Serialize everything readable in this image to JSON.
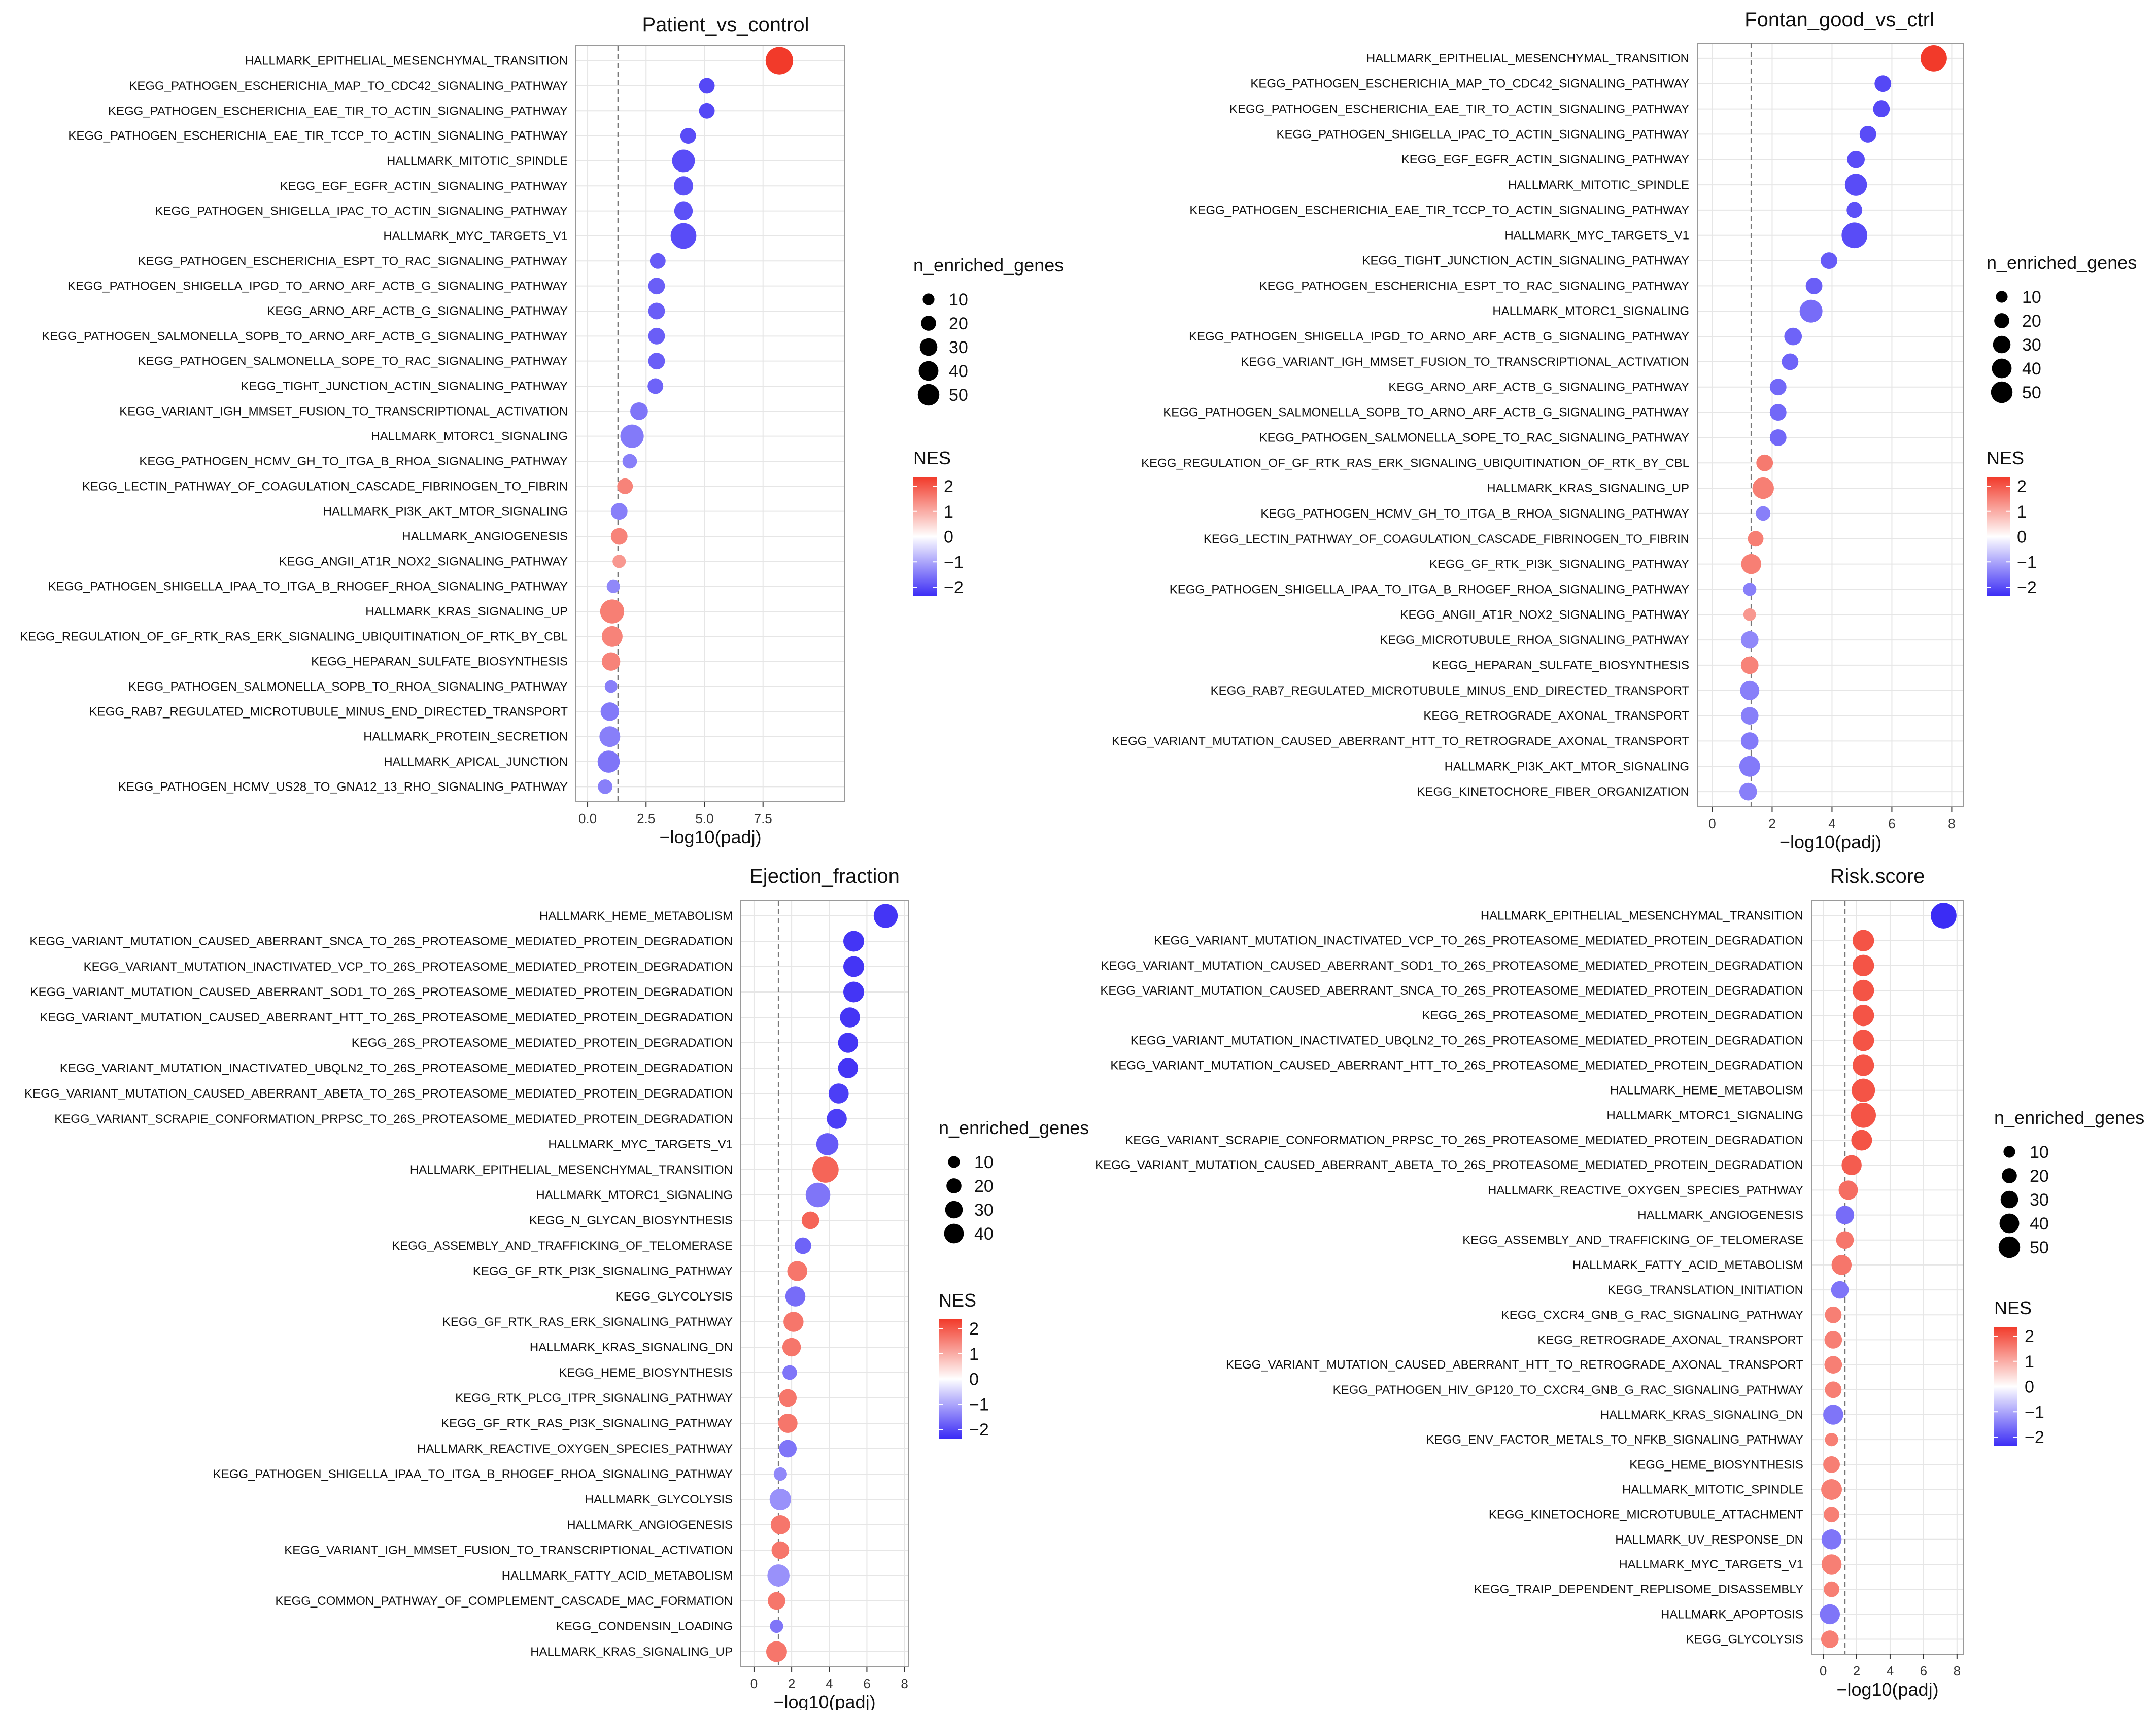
{
  "legend": {
    "size_title": "n_enriched_genes",
    "color_title": "NES",
    "color_ticks": [
      2,
      1,
      0,
      -1,
      -2
    ],
    "color_scale": {
      "low": "#3b2cf5",
      "mid": "#ffffff",
      "high": "#f23a2a"
    }
  },
  "chart_data": [
    {
      "type": "scatter",
      "title": "Patient_vs_control",
      "xlabel": "−log10(padj)",
      "xlim": [
        -0.5,
        11
      ],
      "xticks": [
        0.0,
        2.5,
        5.0,
        7.5
      ],
      "xtick_labels": [
        "0.0",
        "2.5",
        "5.0",
        "7.5"
      ],
      "threshold": 1.3,
      "size_legend": [
        10,
        20,
        30,
        40,
        50
      ],
      "pathways": [
        "HALLMARK_EPITHELIAL_MESENCHYMAL_TRANSITION",
        "KEGG_PATHOGEN_ESCHERICHIA_MAP_TO_CDC42_SIGNALING_PATHWAY",
        "KEGG_PATHOGEN_ESCHERICHIA_EAE_TIR_TO_ACTIN_SIGNALING_PATHWAY",
        "KEGG_PATHOGEN_ESCHERICHIA_EAE_TIR_TCCP_TO_ACTIN_SIGNALING_PATHWAY",
        "HALLMARK_MITOTIC_SPINDLE",
        "KEGG_EGF_EGFR_ACTIN_SIGNALING_PATHWAY",
        "KEGG_PATHOGEN_SHIGELLA_IPAC_TO_ACTIN_SIGNALING_PATHWAY",
        "HALLMARK_MYC_TARGETS_V1",
        "KEGG_PATHOGEN_ESCHERICHIA_ESPT_TO_RAC_SIGNALING_PATHWAY",
        "KEGG_PATHOGEN_SHIGELLA_IPGD_TO_ARNO_ARF_ACTB_G_SIGNALING_PATHWAY",
        "KEGG_ARNO_ARF_ACTB_G_SIGNALING_PATHWAY",
        "KEGG_PATHOGEN_SALMONELLA_SOPB_TO_ARNO_ARF_ACTB_G_SIGNALING_PATHWAY",
        "KEGG_PATHOGEN_SALMONELLA_SOPE_TO_RAC_SIGNALING_PATHWAY",
        "KEGG_TIGHT_JUNCTION_ACTIN_SIGNALING_PATHWAY",
        "KEGG_VARIANT_IGH_MMSET_FUSION_TO_TRANSCRIPTIONAL_ACTIVATION",
        "HALLMARK_MTORC1_SIGNALING",
        "KEGG_PATHOGEN_HCMV_GH_TO_ITGA_B_RHOA_SIGNALING_PATHWAY",
        "KEGG_LECTIN_PATHWAY_OF_COAGULATION_CASCADE_FIBRINOGEN_TO_FIBRIN",
        "HALLMARK_PI3K_AKT_MTOR_SIGNALING",
        "HALLMARK_ANGIOGENESIS",
        "KEGG_ANGII_AT1R_NOX2_SIGNALING_PATHWAY",
        "KEGG_PATHOGEN_SHIGELLA_IPAA_TO_ITGA_B_RHOGEF_RHOA_SIGNALING_PATHWAY",
        "HALLMARK_KRAS_SIGNALING_UP",
        "KEGG_REGULATION_OF_GF_RTK_RAS_ERK_SIGNALING_UBIQUITINATION_OF_RTK_BY_CBL",
        "KEGG_HEPARAN_SULFATE_BIOSYNTHESIS",
        "KEGG_PATHOGEN_SALMONELLA_SOPB_TO_RHOA_SIGNALING_PATHWAY",
        "KEGG_RAB7_REGULATED_MICROTUBULE_MINUS_END_DIRECTED_TRANSPORT",
        "HALLMARK_PROTEIN_SECRETION",
        "HALLMARK_APICAL_JUNCTION",
        "KEGG_PATHOGEN_HCMV_US28_TO_GNA12_13_RHO_SIGNALING_PATHWAY"
      ],
      "x": [
        8.2,
        5.1,
        5.1,
        4.3,
        4.1,
        4.1,
        4.1,
        4.1,
        3.0,
        2.95,
        2.95,
        2.95,
        2.95,
        2.9,
        2.2,
        1.9,
        1.8,
        1.6,
        1.35,
        1.35,
        1.35,
        1.1,
        1.05,
        1.05,
        1.0,
        1.0,
        0.95,
        0.95,
        0.9,
        0.75
      ],
      "n": [
        45,
        10,
        10,
        10,
        28,
        18,
        16,
        38,
        10,
        12,
        12,
        12,
        12,
        10,
        14,
        30,
        8,
        10,
        12,
        12,
        6,
        6,
        32,
        22,
        16,
        5,
        16,
        22,
        26,
        8
      ],
      "nes": [
        2.3,
        -2.0,
        -2.0,
        -1.95,
        -1.95,
        -1.9,
        -1.9,
        -1.95,
        -1.8,
        -1.75,
        -1.75,
        -1.75,
        -1.75,
        -1.7,
        -1.5,
        -1.45,
        -1.4,
        1.45,
        -1.4,
        1.45,
        1.2,
        -1.3,
        1.5,
        1.45,
        1.45,
        -1.4,
        -1.45,
        -1.4,
        -1.5,
        -1.4
      ]
    },
    {
      "type": "scatter",
      "title": "Fontan_good_vs_ctrl",
      "xlabel": "−log10(padj)",
      "xlim": [
        -0.5,
        8.4
      ],
      "xticks": [
        0,
        2,
        4,
        6,
        8
      ],
      "xtick_labels": [
        "0",
        "2",
        "4",
        "6",
        "8"
      ],
      "threshold": 1.3,
      "size_legend": [
        10,
        20,
        30,
        40,
        50
      ],
      "pathways": [
        "HALLMARK_EPITHELIAL_MESENCHYMAL_TRANSITION",
        "KEGG_PATHOGEN_ESCHERICHIA_MAP_TO_CDC42_SIGNALING_PATHWAY",
        "KEGG_PATHOGEN_ESCHERICHIA_EAE_TIR_TO_ACTIN_SIGNALING_PATHWAY",
        "KEGG_PATHOGEN_SHIGELLA_IPAC_TO_ACTIN_SIGNALING_PATHWAY",
        "KEGG_EGF_EGFR_ACTIN_SIGNALING_PATHWAY",
        "HALLMARK_MITOTIC_SPINDLE",
        "KEGG_PATHOGEN_ESCHERICHIA_EAE_TIR_TCCP_TO_ACTIN_SIGNALING_PATHWAY",
        "HALLMARK_MYC_TARGETS_V1",
        "KEGG_TIGHT_JUNCTION_ACTIN_SIGNALING_PATHWAY",
        "KEGG_PATHOGEN_ESCHERICHIA_ESPT_TO_RAC_SIGNALING_PATHWAY",
        "HALLMARK_MTORC1_SIGNALING",
        "KEGG_PATHOGEN_SHIGELLA_IPGD_TO_ARNO_ARF_ACTB_G_SIGNALING_PATHWAY",
        "KEGG_VARIANT_IGH_MMSET_FUSION_TO_TRANSCRIPTIONAL_ACTIVATION",
        "KEGG_ARNO_ARF_ACTB_G_SIGNALING_PATHWAY",
        "KEGG_PATHOGEN_SALMONELLA_SOPB_TO_ARNO_ARF_ACTB_G_SIGNALING_PATHWAY",
        "KEGG_PATHOGEN_SALMONELLA_SOPE_TO_RAC_SIGNALING_PATHWAY",
        "KEGG_REGULATION_OF_GF_RTK_RAS_ERK_SIGNALING_UBIQUITINATION_OF_RTK_BY_CBL",
        "HALLMARK_KRAS_SIGNALING_UP",
        "KEGG_PATHOGEN_HCMV_GH_TO_ITGA_B_RHOA_SIGNALING_PATHWAY",
        "KEGG_LECTIN_PATHWAY_OF_COAGULATION_CASCADE_FIBRINOGEN_TO_FIBRIN",
        "KEGG_GF_RTK_PI3K_SIGNALING_PATHWAY",
        "KEGG_PATHOGEN_SHIGELLA_IPAA_TO_ITGA_B_RHOGEF_RHOA_SIGNALING_PATHWAY",
        "KEGG_ANGII_AT1R_NOX2_SIGNALING_PATHWAY",
        "KEGG_MICROTUBULE_RHOA_SIGNALING_PATHWAY",
        "KEGG_HEPARAN_SULFATE_BIOSYNTHESIS",
        "KEGG_RAB7_REGULATED_MICROTUBULE_MINUS_END_DIRECTED_TRANSPORT",
        "KEGG_RETROGRADE_AXONAL_TRANSPORT",
        "KEGG_VARIANT_MUTATION_CAUSED_ABERRANT_HTT_TO_RETROGRADE_AXONAL_TRANSPORT",
        "HALLMARK_PI3K_AKT_MTOR_SIGNALING",
        "KEGG_KINETOCHORE_FIBER_ORGANIZATION"
      ],
      "x": [
        7.4,
        5.7,
        5.65,
        5.2,
        4.8,
        4.8,
        4.75,
        4.75,
        3.9,
        3.4,
        3.3,
        2.7,
        2.6,
        2.2,
        2.2,
        2.2,
        1.75,
        1.7,
        1.7,
        1.45,
        1.3,
        1.25,
        1.25,
        1.25,
        1.25,
        1.25,
        1.25,
        1.25,
        1.25,
        1.2
      ],
      "n": [
        40,
        12,
        12,
        12,
        14,
        26,
        10,
        38,
        12,
        12,
        28,
        14,
        12,
        12,
        12,
        12,
        12,
        24,
        8,
        10,
        20,
        6,
        5,
        14,
        14,
        18,
        14,
        14,
        22,
        14
      ],
      "nes": [
        2.3,
        -2.0,
        -2.0,
        -1.95,
        -1.95,
        -1.95,
        -1.9,
        -1.95,
        -1.8,
        -1.75,
        -1.6,
        -1.7,
        -1.7,
        -1.65,
        -1.65,
        -1.65,
        1.55,
        1.5,
        -1.4,
        1.5,
        1.5,
        -1.4,
        1.2,
        -1.3,
        1.45,
        -1.4,
        -1.4,
        -1.45,
        -1.45,
        -1.4
      ]
    },
    {
      "type": "scatter",
      "title": "Ejection_fraction",
      "xlabel": "−log10(padj)",
      "xlim": [
        -0.7,
        8.2
      ],
      "xticks": [
        0,
        2,
        4,
        6,
        8
      ],
      "xtick_labels": [
        "0",
        "2",
        "4",
        "6",
        "8"
      ],
      "threshold": 1.3,
      "size_legend": [
        10,
        20,
        30,
        40
      ],
      "pathways": [
        "HALLMARK_HEME_METABOLISM",
        "KEGG_VARIANT_MUTATION_CAUSED_ABERRANT_SNCA_TO_26S_PROTEASOME_MEDIATED_PROTEIN_DEGRADATION",
        "KEGG_VARIANT_MUTATION_INACTIVATED_VCP_TO_26S_PROTEASOME_MEDIATED_PROTEIN_DEGRADATION",
        "KEGG_VARIANT_MUTATION_CAUSED_ABERRANT_SOD1_TO_26S_PROTEASOME_MEDIATED_PROTEIN_DEGRADATION",
        "KEGG_VARIANT_MUTATION_CAUSED_ABERRANT_HTT_TO_26S_PROTEASOME_MEDIATED_PROTEIN_DEGRADATION",
        "KEGG_26S_PROTEASOME_MEDIATED_PROTEIN_DEGRADATION",
        "KEGG_VARIANT_MUTATION_INACTIVATED_UBQLN2_TO_26S_PROTEASOME_MEDIATED_PROTEIN_DEGRADATION",
        "KEGG_VARIANT_MUTATION_CAUSED_ABERRANT_ABETA_TO_26S_PROTEASOME_MEDIATED_PROTEIN_DEGRADATION",
        "KEGG_VARIANT_SCRAPIE_CONFORMATION_PRPSC_TO_26S_PROTEASOME_MEDIATED_PROTEIN_DEGRADATION",
        "HALLMARK_MYC_TARGETS_V1",
        "HALLMARK_EPITHELIAL_MESENCHYMAL_TRANSITION",
        "HALLMARK_MTORC1_SIGNALING",
        "KEGG_N_GLYCAN_BIOSYNTHESIS",
        "KEGG_ASSEMBLY_AND_TRAFFICKING_OF_TELOMERASE",
        "KEGG_GF_RTK_PI3K_SIGNALING_PATHWAY",
        "KEGG_GLYCOLYSIS",
        "KEGG_GF_RTK_RAS_ERK_SIGNALING_PATHWAY",
        "HALLMARK_KRAS_SIGNALING_DN",
        "KEGG_HEME_BIOSYNTHESIS",
        "KEGG_RTK_PLCG_ITPR_SIGNALING_PATHWAY",
        "KEGG_GF_RTK_RAS_PI3K_SIGNALING_PATHWAY",
        "HALLMARK_REACTIVE_OXYGEN_SPECIES_PATHWAY",
        "KEGG_PATHOGEN_SHIGELLA_IPAA_TO_ITGA_B_RHOGEF_RHOA_SIGNALING_PATHWAY",
        "HALLMARK_GLYCOLYSIS",
        "HALLMARK_ANGIOGENESIS",
        "KEGG_VARIANT_IGH_MMSET_FUSION_TO_TRANSCRIPTIONAL_ACTIVATION",
        "HALLMARK_FATTY_ACID_METABOLISM",
        "KEGG_COMMON_PATHWAY_OF_COMPLEMENT_CASCADE_MAC_FORMATION",
        "KEGG_CONDENSIN_LOADING",
        "HALLMARK_KRAS_SIGNALING_UP"
      ],
      "x": [
        7.0,
        5.3,
        5.3,
        5.3,
        5.1,
        5.0,
        5.0,
        4.5,
        4.4,
        3.9,
        3.8,
        3.4,
        3.0,
        2.6,
        2.3,
        2.2,
        2.1,
        2.0,
        1.9,
        1.8,
        1.8,
        1.8,
        1.4,
        1.4,
        1.4,
        1.4,
        1.3,
        1.2,
        1.2,
        1.2
      ],
      "n": [
        32,
        22,
        22,
        22,
        20,
        20,
        20,
        20,
        20,
        26,
        40,
        34,
        14,
        12,
        20,
        20,
        20,
        16,
        8,
        14,
        18,
        14,
        6,
        24,
        18,
        14,
        26,
        14,
        6,
        22
      ],
      "nes": [
        -2.2,
        -2.2,
        -2.2,
        -2.2,
        -2.2,
        -2.2,
        -2.2,
        -2.1,
        -2.1,
        -1.8,
        1.8,
        -1.5,
        1.8,
        -1.7,
        1.6,
        -1.6,
        1.6,
        1.6,
        -1.5,
        1.6,
        1.6,
        -1.5,
        -1.3,
        -1.2,
        1.6,
        1.6,
        -1.2,
        1.6,
        -1.5,
        1.6
      ]
    },
    {
      "type": "scatter",
      "title": "Risk.score",
      "xlabel": "−log10(padj)",
      "xlim": [
        -0.7,
        8.4
      ],
      "xticks": [
        0,
        2,
        4,
        6,
        8
      ],
      "xtick_labels": [
        "0",
        "2",
        "4",
        "6",
        "8"
      ],
      "threshold": 1.3,
      "size_legend": [
        10,
        20,
        30,
        40,
        50
      ],
      "pathways": [
        "HALLMARK_EPITHELIAL_MESENCHYMAL_TRANSITION",
        "KEGG_VARIANT_MUTATION_INACTIVATED_VCP_TO_26S_PROTEASOME_MEDIATED_PROTEIN_DEGRADATION",
        "KEGG_VARIANT_MUTATION_CAUSED_ABERRANT_SOD1_TO_26S_PROTEASOME_MEDIATED_PROTEIN_DEGRADATION",
        "KEGG_VARIANT_MUTATION_CAUSED_ABERRANT_SNCA_TO_26S_PROTEASOME_MEDIATED_PROTEIN_DEGRADATION",
        "KEGG_26S_PROTEASOME_MEDIATED_PROTEIN_DEGRADATION",
        "KEGG_VARIANT_MUTATION_INACTIVATED_UBQLN2_TO_26S_PROTEASOME_MEDIATED_PROTEIN_DEGRADATION",
        "KEGG_VARIANT_MUTATION_CAUSED_ABERRANT_HTT_TO_26S_PROTEASOME_MEDIATED_PROTEIN_DEGRADATION",
        "HALLMARK_HEME_METABOLISM",
        "HALLMARK_MTORC1_SIGNALING",
        "KEGG_VARIANT_SCRAPIE_CONFORMATION_PRPSC_TO_26S_PROTEASOME_MEDIATED_PROTEIN_DEGRADATION",
        "KEGG_VARIANT_MUTATION_CAUSED_ABERRANT_ABETA_TO_26S_PROTEASOME_MEDIATED_PROTEIN_DEGRADATION",
        "HALLMARK_REACTIVE_OXYGEN_SPECIES_PATHWAY",
        "HALLMARK_ANGIOGENESIS",
        "KEGG_ASSEMBLY_AND_TRAFFICKING_OF_TELOMERASE",
        "HALLMARK_FATTY_ACID_METABOLISM",
        "KEGG_TRANSLATION_INITIATION",
        "KEGG_CXCR4_GNB_G_RAC_SIGNALING_PATHWAY",
        "KEGG_RETROGRADE_AXONAL_TRANSPORT",
        "KEGG_VARIANT_MUTATION_CAUSED_ABERRANT_HTT_TO_RETROGRADE_AXONAL_TRANSPORT",
        "KEGG_PATHOGEN_HIV_GP120_TO_CXCR4_GNB_G_RAC_SIGNALING_PATHWAY",
        "HALLMARK_KRAS_SIGNALING_DN",
        "KEGG_ENV_FACTOR_METALS_TO_NFKB_SIGNALING_PATHWAY",
        "KEGG_HEME_BIOSYNTHESIS",
        "HALLMARK_MITOTIC_SPINDLE",
        "KEGG_KINETOCHORE_MICROTUBULE_ATTACHMENT",
        "HALLMARK_UV_RESPONSE_DN",
        "HALLMARK_MYC_TARGETS_V1",
        "KEGG_TRAIP_DEPENDENT_REPLISOME_DISASSEMBLY",
        "HALLMARK_APOPTOSIS",
        "KEGG_GLYCOLYSIS"
      ],
      "x": [
        7.2,
        2.4,
        2.4,
        2.4,
        2.4,
        2.4,
        2.4,
        2.4,
        2.4,
        2.3,
        1.7,
        1.5,
        1.3,
        1.3,
        1.1,
        1.0,
        0.6,
        0.6,
        0.6,
        0.6,
        0.6,
        0.5,
        0.5,
        0.5,
        0.5,
        0.5,
        0.5,
        0.5,
        0.4,
        0.4
      ],
      "n": [
        38,
        24,
        24,
        24,
        24,
        24,
        24,
        30,
        36,
        22,
        20,
        18,
        16,
        14,
        20,
        14,
        12,
        14,
        14,
        12,
        20,
        6,
        12,
        22,
        10,
        20,
        20,
        10,
        20,
        14
      ],
      "nes": [
        -2.3,
        2.0,
        2.0,
        2.0,
        2.0,
        2.0,
        2.0,
        2.0,
        2.0,
        2.0,
        1.9,
        1.7,
        -1.6,
        1.6,
        1.6,
        -1.5,
        1.5,
        1.5,
        1.5,
        1.5,
        -1.5,
        1.5,
        1.5,
        1.5,
        1.5,
        -1.5,
        1.5,
        1.5,
        -1.5,
        1.5
      ]
    }
  ]
}
